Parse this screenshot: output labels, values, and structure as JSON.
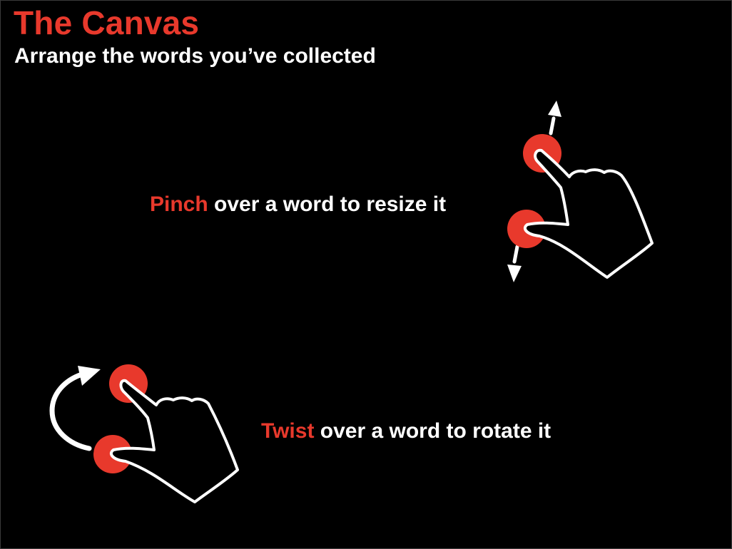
{
  "header": {
    "title": "The Canvas",
    "subtitle": "Arrange the words you’ve collected"
  },
  "instructions": {
    "pinch": {
      "keyword": "Pinch",
      "text": " over a word to resize it",
      "icon": "pinch-gesture-icon"
    },
    "twist": {
      "keyword": "Twist",
      "text": " over a word to rotate it",
      "icon": "twist-gesture-icon"
    }
  },
  "colors": {
    "accent": "#e8392c",
    "background": "#000000",
    "text": "#ffffff"
  }
}
